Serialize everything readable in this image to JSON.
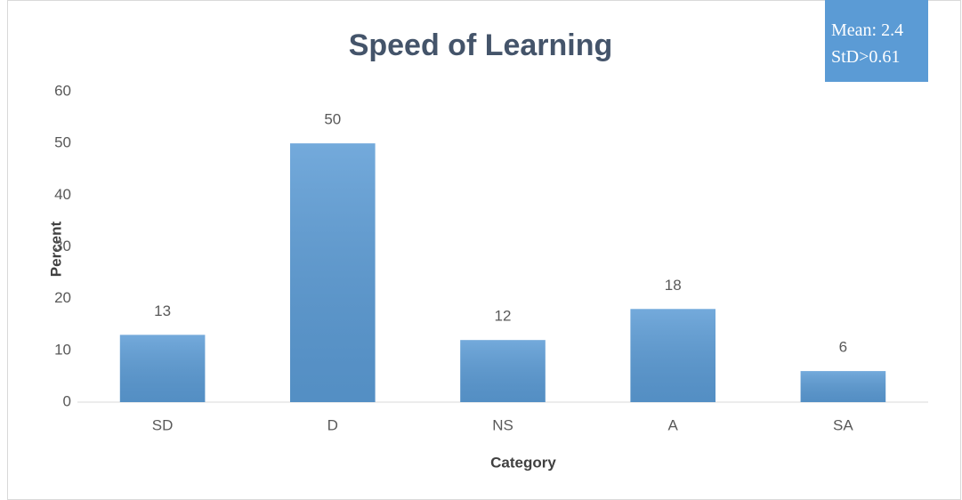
{
  "chart_data": {
    "type": "bar",
    "title": "Speed of Learning",
    "categories": [
      "SD",
      "D",
      "NS",
      "A",
      "SA"
    ],
    "values": [
      13,
      50,
      12,
      18,
      6
    ],
    "color": "#5b9bd5",
    "ylim": [
      0,
      60
    ],
    "yticks": [
      0,
      10,
      20,
      30,
      40,
      50,
      60
    ],
    "grid": false,
    "x_label": "Category",
    "y_label": "Percent",
    "annotation": [
      "Mean: 2.4",
      "StD>0.61"
    ]
  }
}
